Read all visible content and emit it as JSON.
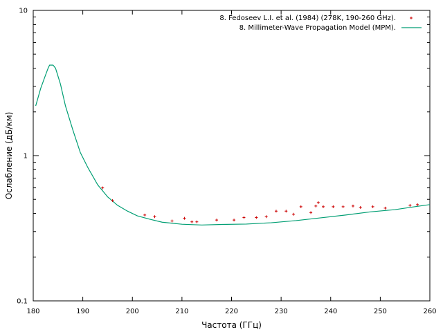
{
  "chart_data": {
    "type": "line",
    "title": "",
    "xlabel": "Частота (ГГц)",
    "ylabel": "Ослабление (дБ/км)",
    "xlim": [
      180,
      260
    ],
    "ylim": [
      0.1,
      10
    ],
    "yscale": "log",
    "xticks": [
      180,
      190,
      200,
      210,
      220,
      230,
      240,
      250,
      260
    ],
    "yticks": [
      0.1,
      1,
      10
    ],
    "ytick_labels": [
      "0.1",
      "1",
      "10"
    ],
    "grid": false,
    "legend_position": "top-right",
    "series": [
      {
        "name": "8. Fedoseev L.I. et al. (1984) (278K, 190-260 GHz).",
        "type": "scatter",
        "color": "#cc0000",
        "x": [
          194.0,
          196.0,
          202.5,
          204.5,
          208.0,
          210.5,
          212.0,
          213.0,
          217.0,
          220.5,
          222.5,
          225.0,
          227.0,
          229.0,
          231.0,
          232.5,
          234.0,
          236.0,
          237.0,
          237.5,
          238.5,
          240.5,
          242.5,
          244.5,
          246.0,
          248.5,
          251.0,
          256.0,
          257.5
        ],
        "y": [
          0.6,
          0.49,
          0.39,
          0.38,
          0.355,
          0.37,
          0.35,
          0.35,
          0.36,
          0.36,
          0.375,
          0.375,
          0.38,
          0.415,
          0.415,
          0.395,
          0.445,
          0.405,
          0.45,
          0.475,
          0.445,
          0.445,
          0.445,
          0.45,
          0.44,
          0.445,
          0.435,
          0.455,
          0.46
        ]
      },
      {
        "name": "8. Millimeter-Wave Propagation Model (MPM).",
        "type": "line",
        "color": "#009e73",
        "x": [
          180.5,
          181.5,
          182.5,
          183.0,
          183.3,
          184.0,
          184.5,
          185.5,
          186.5,
          188.0,
          189.5,
          191.0,
          193.0,
          195.0,
          197.0,
          199.0,
          201.0,
          203.5,
          206.0,
          210.0,
          214.0,
          218.0,
          223.0,
          228.0,
          233.0,
          238.0,
          243.0,
          248.0,
          253.0,
          257.0,
          260.0
        ],
        "y": [
          2.2,
          2.9,
          3.6,
          4.0,
          4.2,
          4.2,
          4.0,
          3.1,
          2.2,
          1.5,
          1.05,
          0.83,
          0.63,
          0.52,
          0.455,
          0.415,
          0.385,
          0.365,
          0.348,
          0.337,
          0.333,
          0.336,
          0.338,
          0.345,
          0.357,
          0.373,
          0.39,
          0.41,
          0.425,
          0.445,
          0.46
        ]
      }
    ]
  }
}
